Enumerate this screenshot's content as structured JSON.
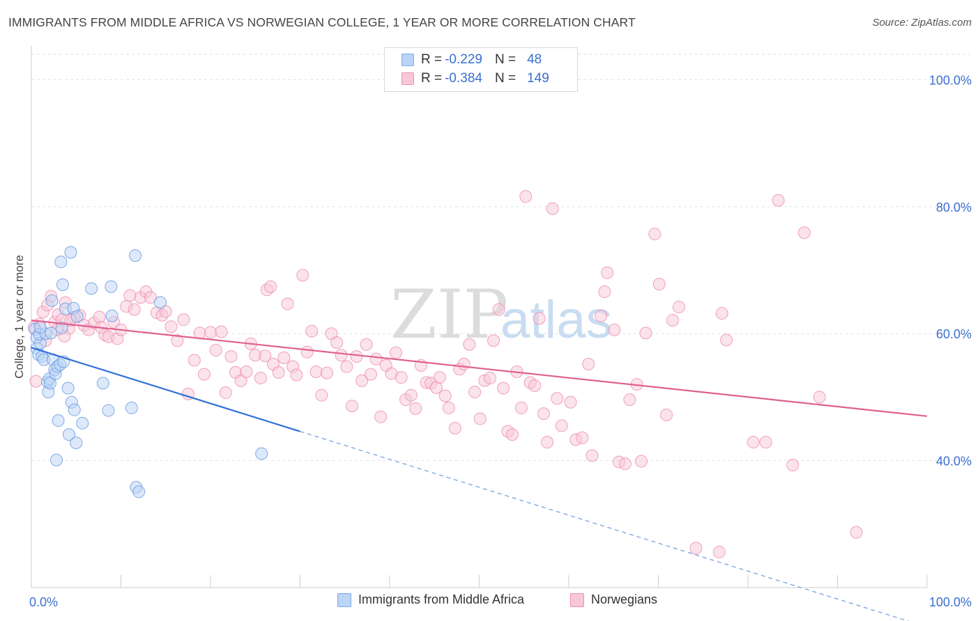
{
  "title": "IMMIGRANTS FROM MIDDLE AFRICA VS NORWEGIAN COLLEGE, 1 YEAR OR MORE CORRELATION CHART",
  "source": "Source: ZipAtlas.com",
  "watermark": {
    "zip": "ZIP",
    "atlas": "atlas"
  },
  "legend": {
    "rows": [
      {
        "r_label": "R =",
        "r_value": "-0.229",
        "n_label": "N =",
        "n_value": "48",
        "color": "#7aaae8",
        "fill": "#bcd4f5"
      },
      {
        "r_label": "R =",
        "r_value": "-0.384",
        "n_label": "N =",
        "n_value": "149",
        "color": "#ee8faf",
        "fill": "#f8c8d8"
      }
    ]
  },
  "bottom_legend": {
    "items": [
      {
        "label": "Immigrants from Middle Africa",
        "color": "#7aaae8",
        "fill": "#bcd4f5"
      },
      {
        "label": "Norwegians",
        "color": "#ee8faf",
        "fill": "#f8c8d8"
      }
    ]
  },
  "chart_data": {
    "type": "scatter",
    "title": "IMMIGRANTS FROM MIDDLE AFRICA VS NORWEGIAN COLLEGE, 1 YEAR OR MORE CORRELATION CHART",
    "xlabel": "",
    "ylabel": "College, 1 year or more",
    "xlim": [
      0,
      100
    ],
    "ylim": [
      20,
      104
    ],
    "x_tick_labels": [
      {
        "value": 0,
        "label": "0.0%"
      },
      {
        "value": 100,
        "label": "100.0%"
      }
    ],
    "y_tick_labels": [
      {
        "value": 40,
        "label": "40.0%"
      },
      {
        "value": 60,
        "label": "60.0%"
      },
      {
        "value": 80,
        "label": "80.0%"
      },
      {
        "value": 100,
        "label": "100.0%"
      }
    ],
    "x_minor_ticks": [
      0,
      10,
      20,
      30,
      40,
      50,
      60,
      70,
      80,
      90,
      100
    ],
    "grid": true,
    "legend_position": "top-center",
    "series": [
      {
        "name": "Immigrants from Middle Africa",
        "color": "#6a9be0",
        "fill": "#bcd4f5",
        "trend": {
          "x0": 0,
          "y0": 57.8,
          "x1": 30,
          "y1": 44.6,
          "dashed_to_x": 100
        },
        "points": [
          [
            0.4,
            60.7
          ],
          [
            0.6,
            57.7
          ],
          [
            0.8,
            56.7
          ],
          [
            0.6,
            59.4
          ],
          [
            1.0,
            58.5
          ],
          [
            0.9,
            59.9
          ],
          [
            1.2,
            56.4
          ],
          [
            1.4,
            55.9
          ],
          [
            1.6,
            60.0
          ],
          [
            1.8,
            52.4
          ],
          [
            2.0,
            52.9
          ],
          [
            1.9,
            50.8
          ],
          [
            2.1,
            52.2
          ],
          [
            2.2,
            60.1
          ],
          [
            2.4,
            55.9
          ],
          [
            2.6,
            54.3
          ],
          [
            2.7,
            53.7
          ],
          [
            2.9,
            54.8
          ],
          [
            3.0,
            46.3
          ],
          [
            2.8,
            40.1
          ],
          [
            3.2,
            55.1
          ],
          [
            3.4,
            60.9
          ],
          [
            3.6,
            55.6
          ],
          [
            3.3,
            71.3
          ],
          [
            3.5,
            67.7
          ],
          [
            3.8,
            63.9
          ],
          [
            4.2,
            44.1
          ],
          [
            4.1,
            51.4
          ],
          [
            4.5,
            49.2
          ],
          [
            4.4,
            72.8
          ],
          [
            4.8,
            48.0
          ],
          [
            5.0,
            42.8
          ],
          [
            4.7,
            64.0
          ],
          [
            5.1,
            62.7
          ],
          [
            5.7,
            45.9
          ],
          [
            6.7,
            67.1
          ],
          [
            8.0,
            52.2
          ],
          [
            8.6,
            47.9
          ],
          [
            9.0,
            62.8
          ],
          [
            8.9,
            67.4
          ],
          [
            11.2,
            48.3
          ],
          [
            11.6,
            72.3
          ],
          [
            11.7,
            35.8
          ],
          [
            12.0,
            35.1
          ],
          [
            14.4,
            64.9
          ],
          [
            25.7,
            41.1
          ],
          [
            1.0,
            61.0
          ],
          [
            2.3,
            65.2
          ]
        ]
      },
      {
        "name": "Norwegians",
        "color": "#ee8faf",
        "fill": "#f8c8d8",
        "trend": {
          "x0": 0,
          "y0": 62.1,
          "x1": 100,
          "y1": 47.0
        },
        "points": [
          [
            0.5,
            52.5
          ],
          [
            0.9,
            61.5
          ],
          [
            1.3,
            63.4
          ],
          [
            1.8,
            64.5
          ],
          [
            2.2,
            65.9
          ],
          [
            2.6,
            61.8
          ],
          [
            3.0,
            63.0
          ],
          [
            3.4,
            62.2
          ],
          [
            3.8,
            64.9
          ],
          [
            4.2,
            60.8
          ],
          [
            4.8,
            62.6
          ],
          [
            5.4,
            62.9
          ],
          [
            5.9,
            61.3
          ],
          [
            6.4,
            60.6
          ],
          [
            7.0,
            61.7
          ],
          [
            7.6,
            62.6
          ],
          [
            7.8,
            61.0
          ],
          [
            8.2,
            59.8
          ],
          [
            8.6,
            59.5
          ],
          [
            9.2,
            61.8
          ],
          [
            9.6,
            59.2
          ],
          [
            10.0,
            60.6
          ],
          [
            10.6,
            64.3
          ],
          [
            11.0,
            66.0
          ],
          [
            11.5,
            63.8
          ],
          [
            12.2,
            65.7
          ],
          [
            12.8,
            66.6
          ],
          [
            13.3,
            65.7
          ],
          [
            14.0,
            63.3
          ],
          [
            14.6,
            62.9
          ],
          [
            15.0,
            63.5
          ],
          [
            15.6,
            61.1
          ],
          [
            16.3,
            58.9
          ],
          [
            17.0,
            62.2
          ],
          [
            17.5,
            50.5
          ],
          [
            18.2,
            55.8
          ],
          [
            18.8,
            60.1
          ],
          [
            19.3,
            53.6
          ],
          [
            20.0,
            60.2
          ],
          [
            20.6,
            57.4
          ],
          [
            21.2,
            60.3
          ],
          [
            21.7,
            50.7
          ],
          [
            22.3,
            56.4
          ],
          [
            22.8,
            53.9
          ],
          [
            23.4,
            52.6
          ],
          [
            24.0,
            54.0
          ],
          [
            24.5,
            58.4
          ],
          [
            25.0,
            56.6
          ],
          [
            25.6,
            53.0
          ],
          [
            26.1,
            56.5
          ],
          [
            26.3,
            66.9
          ],
          [
            26.7,
            67.4
          ],
          [
            27.0,
            55.2
          ],
          [
            27.6,
            53.9
          ],
          [
            28.2,
            56.2
          ],
          [
            28.6,
            64.7
          ],
          [
            29.2,
            54.8
          ],
          [
            29.6,
            53.5
          ],
          [
            30.3,
            69.2
          ],
          [
            30.8,
            57.1
          ],
          [
            31.3,
            60.4
          ],
          [
            31.8,
            54.0
          ],
          [
            32.4,
            50.3
          ],
          [
            33.0,
            53.8
          ],
          [
            33.5,
            60.0
          ],
          [
            34.1,
            58.6
          ],
          [
            34.6,
            56.6
          ],
          [
            35.2,
            54.8
          ],
          [
            35.8,
            48.6
          ],
          [
            36.3,
            56.4
          ],
          [
            36.9,
            52.6
          ],
          [
            37.4,
            58.3
          ],
          [
            37.9,
            53.6
          ],
          [
            38.5,
            56.0
          ],
          [
            39.0,
            46.9
          ],
          [
            39.6,
            55.0
          ],
          [
            40.2,
            53.7
          ],
          [
            40.7,
            57.0
          ],
          [
            41.3,
            53.1
          ],
          [
            41.8,
            49.6
          ],
          [
            42.4,
            50.3
          ],
          [
            42.9,
            48.2
          ],
          [
            43.5,
            55.0
          ],
          [
            44.1,
            52.3
          ],
          [
            44.6,
            52.2
          ],
          [
            45.2,
            51.5
          ],
          [
            45.6,
            53.1
          ],
          [
            46.2,
            50.2
          ],
          [
            46.6,
            48.3
          ],
          [
            47.3,
            45.1
          ],
          [
            47.8,
            54.4
          ],
          [
            48.3,
            55.2
          ],
          [
            48.9,
            58.3
          ],
          [
            49.5,
            50.8
          ],
          [
            50.1,
            46.6
          ],
          [
            50.6,
            52.6
          ],
          [
            51.2,
            53.0
          ],
          [
            51.6,
            58.9
          ],
          [
            52.2,
            63.8
          ],
          [
            52.7,
            51.4
          ],
          [
            53.2,
            44.6
          ],
          [
            53.7,
            44.1
          ],
          [
            54.2,
            54.0
          ],
          [
            54.7,
            48.3
          ],
          [
            55.2,
            81.6
          ],
          [
            55.7,
            52.3
          ],
          [
            56.2,
            51.8
          ],
          [
            56.7,
            62.4
          ],
          [
            57.2,
            47.4
          ],
          [
            57.6,
            42.9
          ],
          [
            58.2,
            79.7
          ],
          [
            58.7,
            49.8
          ],
          [
            59.2,
            45.5
          ],
          [
            60.2,
            49.2
          ],
          [
            60.8,
            43.3
          ],
          [
            61.5,
            43.6
          ],
          [
            62.2,
            55.2
          ],
          [
            62.6,
            40.8
          ],
          [
            63.6,
            62.8
          ],
          [
            64.0,
            66.6
          ],
          [
            64.3,
            69.6
          ],
          [
            65.1,
            60.6
          ],
          [
            65.6,
            39.8
          ],
          [
            66.3,
            39.5
          ],
          [
            66.8,
            49.6
          ],
          [
            67.6,
            52.0
          ],
          [
            68.1,
            39.9
          ],
          [
            68.6,
            60.1
          ],
          [
            69.6,
            75.7
          ],
          [
            70.1,
            67.8
          ],
          [
            70.9,
            47.2
          ],
          [
            71.6,
            62.1
          ],
          [
            72.3,
            64.2
          ],
          [
            77.1,
            63.2
          ],
          [
            77.6,
            59.0
          ],
          [
            80.6,
            42.9
          ],
          [
            82.0,
            42.9
          ],
          [
            83.4,
            81.0
          ],
          [
            85.0,
            39.3
          ],
          [
            86.3,
            75.9
          ],
          [
            88.0,
            50.0
          ],
          [
            92.1,
            28.7
          ],
          [
            74.2,
            26.2
          ],
          [
            76.8,
            25.6
          ],
          [
            0.3,
            61.0
          ],
          [
            1.6,
            58.9
          ],
          [
            2.9,
            60.6
          ],
          [
            3.7,
            59.6
          ],
          [
            4.4,
            62.1
          ]
        ]
      }
    ]
  }
}
